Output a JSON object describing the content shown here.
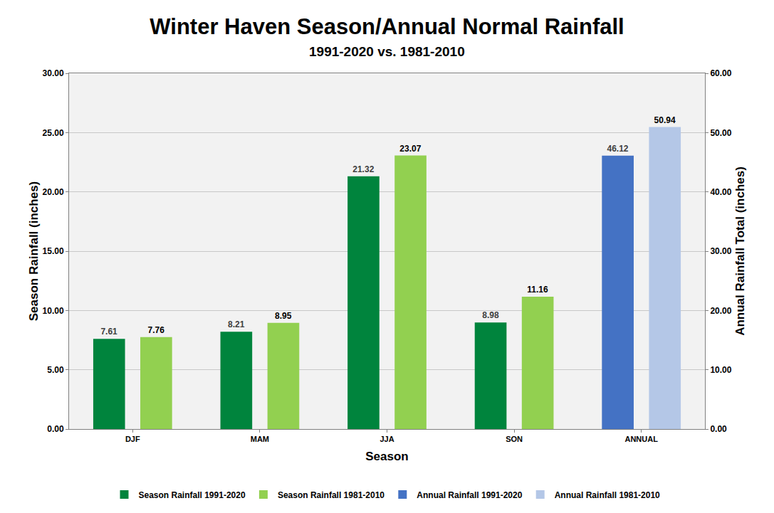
{
  "chart_data": {
    "type": "bar",
    "title": "Winter Haven Season/Annual Normal Rainfall",
    "subtitle": "1991-2020 vs. 1981-2010",
    "x_label": "Season",
    "y_label": "Season Rainfall (inches)",
    "y2_label": "Annual Rainfall Total (inches)",
    "categories": [
      "DJF",
      "MAM",
      "JJA",
      "SON",
      "ANNUAL"
    ],
    "series": [
      {
        "name": "Season Rainfall 1991-2020",
        "color": "#00843d",
        "values": [
          7.61,
          8.21,
          21.32,
          8.98,
          null
        ]
      },
      {
        "name": "Season Rainfall 1981-2010",
        "color": "#92d050",
        "values": [
          7.76,
          8.95,
          23.07,
          11.16,
          null
        ]
      },
      {
        "name": "Annual Rainfall 1991-2020",
        "color": "#4472c4",
        "axis": "y2",
        "values": [
          null,
          null,
          null,
          null,
          46.12
        ]
      },
      {
        "name": "Annual Rainfall 1981-2010",
        "color": "#b4c7e7",
        "axis": "y2",
        "values": [
          null,
          null,
          null,
          null,
          50.94
        ]
      }
    ],
    "ylim": [
      0,
      30
    ],
    "yticks": [
      {
        "value": 0,
        "label": "0.00"
      },
      {
        "value": 5,
        "label": "5.00"
      },
      {
        "value": 10,
        "label": "10.00"
      },
      {
        "value": 15,
        "label": "15.00"
      },
      {
        "value": 20,
        "label": "20.00"
      },
      {
        "value": 25,
        "label": "25.00"
      },
      {
        "value": 30,
        "label": "30.00"
      }
    ],
    "y2lim": [
      0,
      60
    ],
    "y2ticks": [
      {
        "value": 0,
        "label": "0.00"
      },
      {
        "value": 10,
        "label": "10.00"
      },
      {
        "value": 20,
        "label": "20.00"
      },
      {
        "value": 30,
        "label": "30.00"
      },
      {
        "value": 40,
        "label": "40.00"
      },
      {
        "value": 50,
        "label": "50.00"
      },
      {
        "value": 60,
        "label": "60.00"
      }
    ],
    "grid": true,
    "legend": "bottom",
    "data_labels": true
  }
}
